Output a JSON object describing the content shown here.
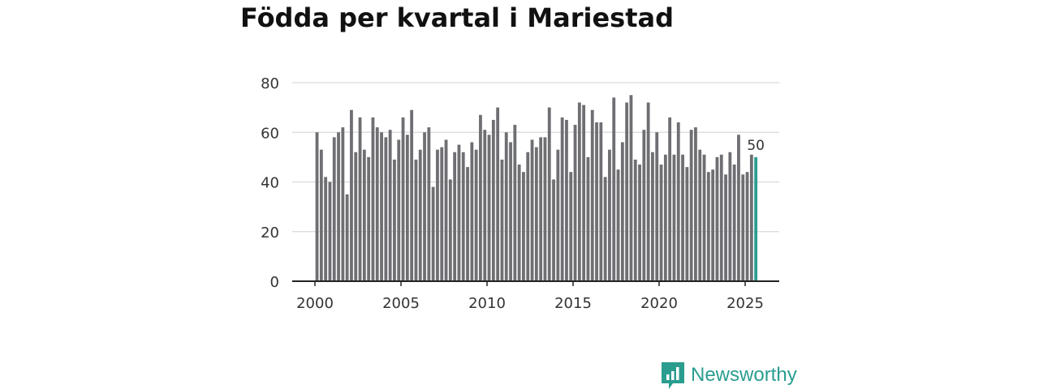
{
  "chart_data": {
    "type": "bar",
    "title": "Födda per kvartal i Mariestad",
    "xlabel": "",
    "ylabel": "",
    "ylim": [
      0,
      80
    ],
    "yticks": [
      0,
      20,
      40,
      60,
      80
    ],
    "xlim": [
      1999.7,
      2026.2
    ],
    "xticks": [
      2000,
      2005,
      2010,
      2015,
      2020,
      2025
    ],
    "grid": true,
    "start": "2000 Q1",
    "end": "2025 Q3",
    "values": [
      60,
      53,
      42,
      40,
      58,
      60,
      62,
      35,
      69,
      52,
      66,
      53,
      50,
      66,
      62,
      60,
      58,
      61,
      49,
      57,
      66,
      59,
      69,
      49,
      53,
      60,
      62,
      38,
      53,
      54,
      57,
      41,
      52,
      55,
      52,
      46,
      56,
      53,
      67,
      61,
      59,
      65,
      70,
      49,
      60,
      56,
      63,
      47,
      44,
      52,
      57,
      54,
      58,
      58,
      70,
      41,
      53,
      66,
      65,
      44,
      63,
      72,
      71,
      50,
      69,
      64,
      64,
      42,
      53,
      74,
      45,
      56,
      72,
      75,
      49,
      47,
      61,
      72,
      52,
      60,
      47,
      51,
      66,
      51,
      64,
      51,
      46,
      61,
      62,
      53,
      51,
      44,
      45,
      50,
      51,
      43,
      52,
      47,
      59,
      43,
      44,
      51,
      50
    ],
    "bar_color": "#6e6e73",
    "highlight_color": "#2a9d8f",
    "highlight_index": 102,
    "highlight_label": "50"
  },
  "brand": {
    "name": "Newsworthy",
    "icon": "newsworthy-logo-icon",
    "color": "#2a9d8f"
  }
}
